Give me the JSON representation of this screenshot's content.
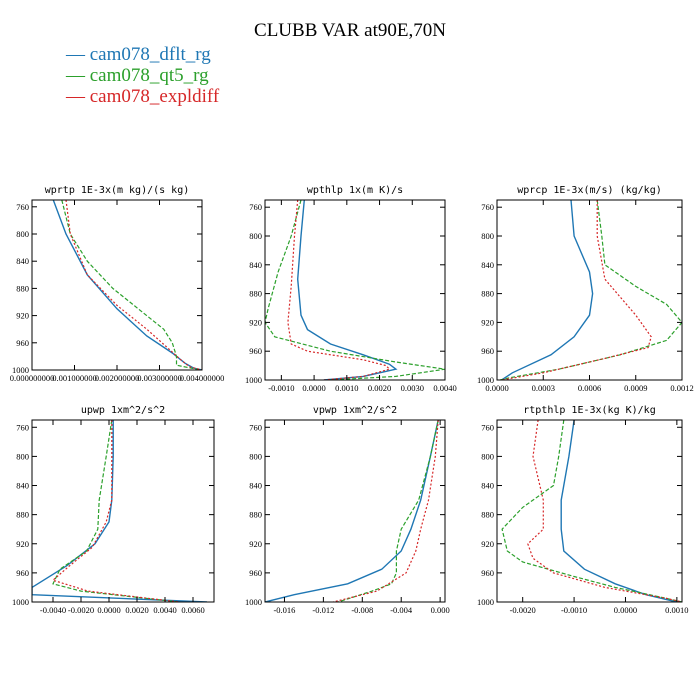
{
  "title": "CLUBB VAR at90E,70N",
  "legend": [
    {
      "marker": "—",
      "label": "cam078_dflt_rg",
      "color": "#1f77b4"
    },
    {
      "marker": "—",
      "label": "cam078_qt5_rg",
      "color": "#2ca02c"
    },
    {
      "marker": "—",
      "label": "cam078_expldiff",
      "color": "#d62728"
    }
  ],
  "chart_data": [
    {
      "type": "line",
      "title": "wprtp   1E-3x(m kg)/(s kg)",
      "xlim": [
        0,
        0.004
      ],
      "ylim": [
        1000,
        750
      ],
      "yticks": [
        760,
        800,
        840,
        880,
        920,
        960,
        1000
      ],
      "xticks": [
        0,
        0.001,
        0.002,
        0.003,
        0.004
      ],
      "xticklabels": [
        "0.000000000",
        "0.001000000",
        "0.002000000",
        "0.003000000",
        "0.004000000"
      ],
      "series": [
        {
          "name": "cam078_dflt_rg",
          "color": "#1f77b4",
          "dash": "",
          "points": [
            [
              0.0005,
              750
            ],
            [
              0.0008,
              800
            ],
            [
              0.0013,
              860
            ],
            [
              0.002,
              910
            ],
            [
              0.0027,
              950
            ],
            [
              0.0033,
              975
            ],
            [
              0.0036,
              990
            ],
            [
              0.0038,
              997
            ],
            [
              0.004,
              1000
            ]
          ]
        },
        {
          "name": "cam078_qt5_rg",
          "color": "#2ca02c",
          "dash": "4,2",
          "points": [
            [
              0.0007,
              750
            ],
            [
              0.0009,
              800
            ],
            [
              0.0013,
              840
            ],
            [
              0.0019,
              880
            ],
            [
              0.0026,
              915
            ],
            [
              0.0031,
              940
            ],
            [
              0.0033,
              960
            ],
            [
              0.0034,
              980
            ],
            [
              0.0034,
              993
            ],
            [
              0.0038,
              998
            ],
            [
              0.004,
              1000
            ]
          ]
        },
        {
          "name": "cam078_expldiff",
          "color": "#d62728",
          "dash": "2,2",
          "points": [
            [
              0.0008,
              750
            ],
            [
              0.0009,
              800
            ],
            [
              0.0013,
              860
            ],
            [
              0.002,
              905
            ],
            [
              0.0027,
              940
            ],
            [
              0.0032,
              968
            ],
            [
              0.0035,
              985
            ],
            [
              0.0037,
              995
            ],
            [
              0.004,
              1000
            ]
          ]
        }
      ]
    },
    {
      "type": "line",
      "title": "wpthlp   1x(m K)/s",
      "xlim": [
        -0.0015,
        0.004
      ],
      "ylim": [
        1000,
        750
      ],
      "yticks": [
        760,
        800,
        840,
        880,
        920,
        960,
        1000
      ],
      "xticks": [
        -0.001,
        0,
        0.001,
        0.002,
        0.003,
        0.004
      ],
      "xticklabels": [
        "-0.0010",
        "0.0000",
        "0.0010",
        "0.0020",
        "0.0030",
        "0.0040"
      ],
      "series": [
        {
          "name": "cam078_dflt_rg",
          "color": "#1f77b4",
          "dash": "",
          "points": [
            [
              -0.0003,
              750
            ],
            [
              -0.0004,
              800
            ],
            [
              -0.0005,
              860
            ],
            [
              -0.0004,
              910
            ],
            [
              -0.0002,
              930
            ],
            [
              0.0005,
              950
            ],
            [
              0.0015,
              965
            ],
            [
              0.0023,
              978
            ],
            [
              0.0025,
              985
            ],
            [
              0.0015,
              995
            ],
            [
              0.0003,
              1000
            ]
          ]
        },
        {
          "name": "cam078_qt5_rg",
          "color": "#2ca02c",
          "dash": "4,2",
          "points": [
            [
              -0.0004,
              750
            ],
            [
              -0.0007,
              800
            ],
            [
              -0.0011,
              850
            ],
            [
              -0.0014,
              900
            ],
            [
              -0.0015,
              920
            ],
            [
              -0.0012,
              940
            ],
            [
              0.0005,
              960
            ],
            [
              0.0025,
              975
            ],
            [
              0.004,
              985
            ],
            [
              0.0025,
              995
            ],
            [
              0.0005,
              1000
            ]
          ]
        },
        {
          "name": "cam078_expldiff",
          "color": "#d62728",
          "dash": "2,2",
          "points": [
            [
              -0.0005,
              750
            ],
            [
              -0.0006,
              800
            ],
            [
              -0.0007,
              870
            ],
            [
              -0.0008,
              920
            ],
            [
              -0.0007,
              950
            ],
            [
              -0.0002,
              960
            ],
            [
              0.0015,
              972
            ],
            [
              0.0022,
              980
            ],
            [
              0.0023,
              985
            ],
            [
              0.0015,
              995
            ],
            [
              0.0003,
              1000
            ]
          ]
        }
      ]
    },
    {
      "type": "line",
      "title": "wprcp   1E-3x(m/s) (kg/kg)",
      "xlim": [
        0,
        0.0012
      ],
      "ylim": [
        1000,
        750
      ],
      "yticks": [
        760,
        800,
        840,
        880,
        920,
        960,
        1000
      ],
      "xticks": [
        0,
        0.0003,
        0.0006,
        0.0009,
        0.0012
      ],
      "xticklabels": [
        "0.0000",
        "0.0003",
        "0.0006",
        "0.0009",
        "0.0012"
      ],
      "series": [
        {
          "name": "cam078_dflt_rg",
          "color": "#1f77b4",
          "dash": "",
          "points": [
            [
              0.00048,
              750
            ],
            [
              0.0005,
              800
            ],
            [
              0.0006,
              850
            ],
            [
              0.00062,
              880
            ],
            [
              0.0006,
              910
            ],
            [
              0.0005,
              940
            ],
            [
              0.00035,
              965
            ],
            [
              0.0001,
              990
            ],
            [
              3e-05,
              1000
            ]
          ]
        },
        {
          "name": "cam078_qt5_rg",
          "color": "#2ca02c",
          "dash": "4,2",
          "points": [
            [
              0.00065,
              750
            ],
            [
              0.00068,
              800
            ],
            [
              0.0007,
              840
            ],
            [
              0.0009,
              870
            ],
            [
              0.0011,
              895
            ],
            [
              0.0012,
              920
            ],
            [
              0.0011,
              945
            ],
            [
              0.0008,
              965
            ],
            [
              0.0004,
              985
            ],
            [
              8e-05,
              997
            ],
            [
              2e-05,
              1000
            ]
          ]
        },
        {
          "name": "cam078_expldiff",
          "color": "#d62728",
          "dash": "2,2",
          "points": [
            [
              0.00065,
              750
            ],
            [
              0.00065,
              800
            ],
            [
              0.0007,
              860
            ],
            [
              0.0009,
              910
            ],
            [
              0.001,
              940
            ],
            [
              0.00098,
              955
            ],
            [
              0.0007,
              970
            ],
            [
              0.0003,
              990
            ],
            [
              3e-05,
              1000
            ]
          ]
        }
      ]
    },
    {
      "type": "line",
      "title": "upwp   1xm^2/s^2",
      "xlim": [
        -0.0055,
        0.0075
      ],
      "ylim": [
        1000,
        750
      ],
      "yticks": [
        760,
        800,
        840,
        880,
        920,
        960,
        1000
      ],
      "xticks": [
        -0.004,
        -0.002,
        0,
        0.002,
        0.004,
        0.006
      ],
      "xticklabels": [
        "-0.0040",
        "-0.0020",
        "0.0000",
        "0.0020",
        "0.0040",
        "0.0060"
      ],
      "series": [
        {
          "name": "cam078_dflt_rg",
          "color": "#1f77b4",
          "dash": "",
          "points": [
            [
              0.0003,
              750
            ],
            [
              0.0003,
              800
            ],
            [
              0.0002,
              860
            ],
            [
              0,
              890
            ],
            [
              -0.001,
              920
            ],
            [
              -0.003,
              950
            ],
            [
              -0.0055,
              980
            ],
            [
              -0.0055,
              990
            ],
            [
              0.007,
              1000
            ]
          ]
        },
        {
          "name": "cam078_qt5_rg",
          "color": "#2ca02c",
          "dash": "4,2",
          "points": [
            [
              0.0002,
              750
            ],
            [
              -0.0002,
              800
            ],
            [
              -0.0007,
              860
            ],
            [
              -0.0008,
              900
            ],
            [
              -0.0016,
              930
            ],
            [
              -0.0035,
              955
            ],
            [
              -0.004,
              975
            ],
            [
              -0.002,
              985
            ],
            [
              0.005,
              1000
            ]
          ]
        },
        {
          "name": "cam078_expldiff",
          "color": "#d62728",
          "dash": "2,2",
          "points": [
            [
              0.0002,
              750
            ],
            [
              0.0002,
              800
            ],
            [
              0.0002,
              860
            ],
            [
              -0.0002,
              890
            ],
            [
              -0.0012,
              925
            ],
            [
              -0.0028,
              950
            ],
            [
              -0.004,
              970
            ],
            [
              -0.0015,
              985
            ],
            [
              0.005,
              1000
            ]
          ]
        }
      ]
    },
    {
      "type": "line",
      "title": "vpwp   1xm^2/s^2",
      "xlim": [
        -0.018,
        0.0005
      ],
      "ylim": [
        1000,
        750
      ],
      "yticks": [
        760,
        800,
        840,
        880,
        920,
        960,
        1000
      ],
      "xticks": [
        -0.016,
        -0.012,
        -0.008,
        -0.004,
        0
      ],
      "xticklabels": [
        "-0.016",
        "-0.012",
        "-0.008",
        "-0.004",
        "0.000"
      ],
      "series": [
        {
          "name": "cam078_dflt_rg",
          "color": "#1f77b4",
          "dash": "",
          "points": [
            [
              -0.0002,
              750
            ],
            [
              -0.001,
              800
            ],
            [
              -0.002,
              860
            ],
            [
              -0.003,
              900
            ],
            [
              -0.004,
              930
            ],
            [
              -0.006,
              955
            ],
            [
              -0.0095,
              975
            ],
            [
              -0.015,
              990
            ],
            [
              -0.018,
              1000
            ]
          ]
        },
        {
          "name": "cam078_qt5_rg",
          "color": "#2ca02c",
          "dash": "4,2",
          "points": [
            [
              -0.0002,
              750
            ],
            [
              -0.001,
              800
            ],
            [
              -0.0022,
              860
            ],
            [
              -0.004,
              900
            ],
            [
              -0.0045,
              930
            ],
            [
              -0.0045,
              960
            ],
            [
              -0.005,
              975
            ],
            [
              -0.007,
              985
            ],
            [
              -0.0105,
              1000
            ]
          ]
        },
        {
          "name": "cam078_expldiff",
          "color": "#d62728",
          "dash": "2,2",
          "points": [
            [
              -0.0002,
              750
            ],
            [
              -0.0005,
              800
            ],
            [
              -0.0012,
              860
            ],
            [
              -0.002,
              900
            ],
            [
              -0.0025,
              930
            ],
            [
              -0.0035,
              960
            ],
            [
              -0.0065,
              985
            ],
            [
              -0.011,
              1000
            ]
          ]
        }
      ]
    },
    {
      "type": "line",
      "title": "rtpthlp   1E-3x(kg K)/kg",
      "xlim": [
        -0.0025,
        0.0011
      ],
      "ylim": [
        1000,
        750
      ],
      "yticks": [
        760,
        800,
        840,
        880,
        920,
        960,
        1000
      ],
      "xticks": [
        -0.002,
        -0.001,
        0,
        0.001
      ],
      "xticklabels": [
        "-0.0020",
        "-0.0010",
        "0.0000",
        "0.0010"
      ],
      "series": [
        {
          "name": "cam078_dflt_rg",
          "color": "#1f77b4",
          "dash": "",
          "points": [
            [
              -0.001,
              750
            ],
            [
              -0.0011,
              800
            ],
            [
              -0.00125,
              860
            ],
            [
              -0.00125,
              900
            ],
            [
              -0.0012,
              930
            ],
            [
              -0.0008,
              955
            ],
            [
              -0.0002,
              975
            ],
            [
              0.0004,
              990
            ],
            [
              0.001,
              1000
            ]
          ]
        },
        {
          "name": "cam078_qt5_rg",
          "color": "#2ca02c",
          "dash": "4,2",
          "points": [
            [
              -0.0012,
              750
            ],
            [
              -0.0013,
              800
            ],
            [
              -0.0014,
              840
            ],
            [
              -0.002,
              870
            ],
            [
              -0.0024,
              900
            ],
            [
              -0.0023,
              930
            ],
            [
              -0.002,
              945
            ],
            [
              -0.001,
              965
            ],
            [
              -0.0002,
              980
            ],
            [
              0.0008,
              995
            ],
            [
              0.0011,
              1000
            ]
          ]
        },
        {
          "name": "cam078_expldiff",
          "color": "#d62728",
          "dash": "2,2",
          "points": [
            [
              -0.0017,
              750
            ],
            [
              -0.0018,
              800
            ],
            [
              -0.0016,
              860
            ],
            [
              -0.0016,
              900
            ],
            [
              -0.0019,
              920
            ],
            [
              -0.0018,
              940
            ],
            [
              -0.0014,
              960
            ],
            [
              -0.0004,
              980
            ],
            [
              0.0008,
              995
            ],
            [
              0.0011,
              1000
            ]
          ]
        }
      ]
    }
  ]
}
